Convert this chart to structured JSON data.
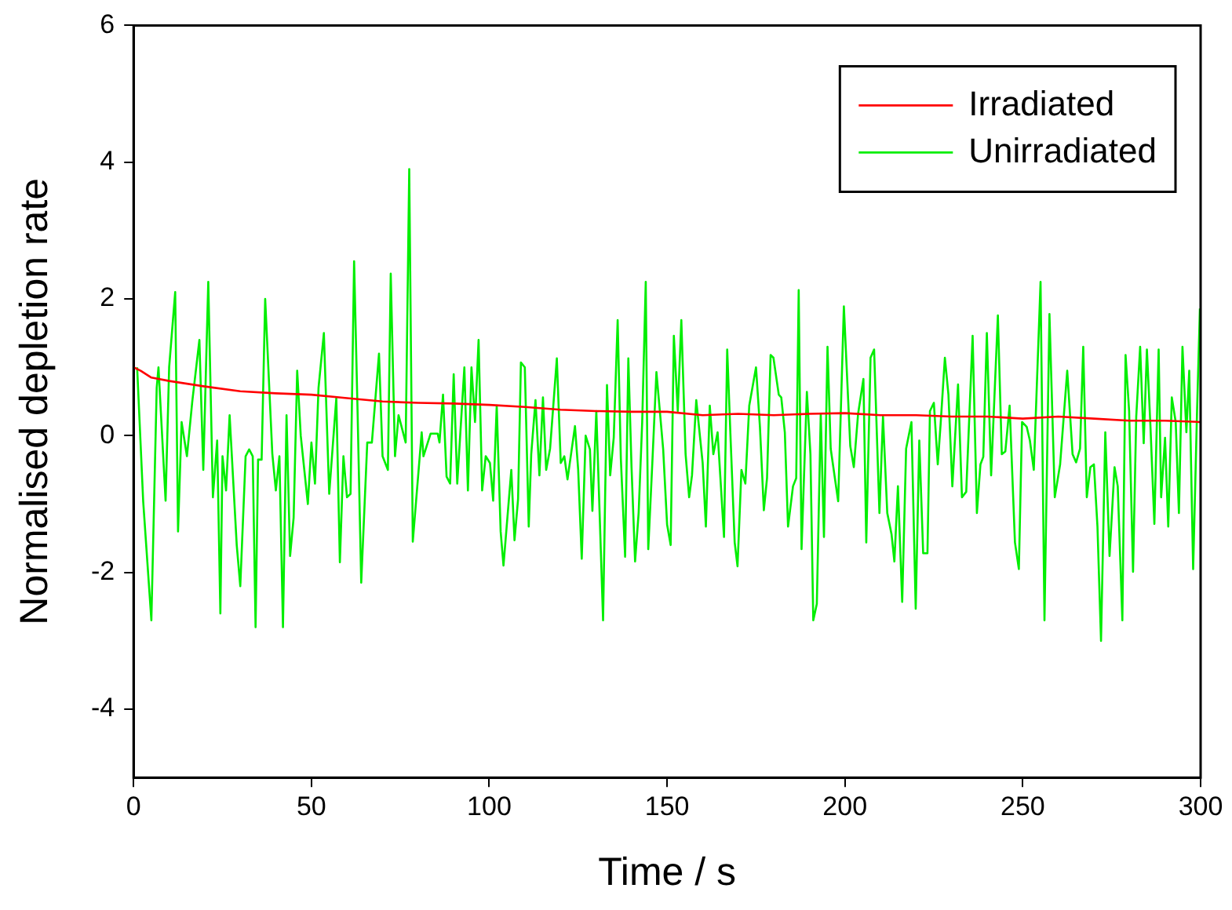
{
  "chart_data": {
    "type": "line",
    "xlabel": "Time / s",
    "ylabel": "Normalised depletion rate",
    "xlim": [
      0,
      300
    ],
    "xticks": [
      0,
      50,
      100,
      150,
      200,
      250,
      300
    ],
    "ylim": [
      -5,
      6
    ],
    "yticks": [
      -4,
      -2,
      0,
      2,
      4,
      6
    ],
    "grid": false,
    "legend": "top right",
    "marker": "none",
    "line_style": "solid",
    "series": [
      {
        "name": "Irradiated",
        "color": "#ff0000",
        "x": [
          0,
          2,
          5,
          10,
          20,
          30,
          40,
          50,
          60,
          70,
          80,
          90,
          100,
          110,
          120,
          130,
          140,
          150,
          160,
          170,
          180,
          190,
          200,
          210,
          220,
          230,
          240,
          250,
          260,
          270,
          280,
          290,
          300
        ],
        "values": [
          1.0,
          0.95,
          0.85,
          0.8,
          0.72,
          0.65,
          0.62,
          0.6,
          0.55,
          0.5,
          0.48,
          0.47,
          0.45,
          0.42,
          0.38,
          0.36,
          0.35,
          0.35,
          0.3,
          0.32,
          0.3,
          0.32,
          0.33,
          0.3,
          0.3,
          0.28,
          0.28,
          0.25,
          0.28,
          0.25,
          0.22,
          0.22,
          0.2
        ]
      },
      {
        "name": "Unirradiated",
        "color": "#00ee00",
        "x": [
          1,
          2.7,
          5,
          6.5,
          7,
          9,
          10,
          11.7,
          12.5,
          13.5,
          15,
          16.5,
          18.5,
          19.6,
          21,
          22.3,
          23.5,
          24.4,
          25,
          26,
          27,
          29,
          30,
          31.5,
          32.5,
          33.5,
          34.3,
          35,
          36,
          37,
          39,
          40,
          41,
          42,
          43,
          44,
          45,
          46,
          47,
          49,
          50,
          51,
          52,
          53.5,
          55,
          57,
          58,
          59,
          60,
          61,
          62,
          63,
          64,
          65.7,
          67,
          69,
          70,
          71.5,
          72.3,
          73.5,
          74.5,
          76.5,
          77.5,
          78.5,
          81,
          81.5,
          83.5,
          85.5,
          86,
          87,
          88,
          89,
          90,
          91,
          93,
          94,
          95,
          96,
          97,
          98,
          99,
          100.2,
          101.1,
          102.1,
          103.2,
          104,
          106.2,
          107.1,
          108.1,
          108.9,
          110,
          111.1,
          111.8,
          113,
          114.1,
          115.1,
          116,
          117.1,
          119,
          120.1,
          121.1,
          122,
          124.1,
          125,
          126,
          127.1,
          128.3,
          129,
          130.1,
          132,
          133.1,
          134,
          135,
          136.1,
          137,
          138.2,
          139.1,
          140,
          141,
          142,
          143,
          144,
          144.7,
          145.9,
          147,
          148.9,
          150,
          151,
          151.9,
          153,
          154,
          155.2,
          156.2,
          157,
          158.2,
          160,
          160.9,
          162,
          163,
          164.2,
          166,
          166.9,
          167.9,
          169,
          169.8,
          170.9,
          172,
          173.1,
          175,
          176.1,
          177.2,
          178.1,
          179.1,
          179.9,
          181.4,
          182.1,
          183.1,
          184,
          185.4,
          186.3,
          187,
          187.8,
          189.3,
          190.3,
          191.1,
          192.1,
          193.2,
          194.1,
          195.1,
          196,
          198.1,
          199.7,
          201.5,
          202.5,
          203.7,
          205.2,
          206,
          207.2,
          208.2,
          209.7,
          210.7,
          211.9,
          213.1,
          213.9,
          214.9,
          216.1,
          217.2,
          218.7,
          219.9,
          220.9,
          222,
          223.2,
          223.9,
          225,
          226.1,
          226.9,
          228.1,
          229.1,
          230.2,
          231.8,
          232.9,
          234.1,
          235.9,
          237.1,
          238.1,
          238.9,
          239.9,
          241.1,
          243,
          244.1,
          245.1,
          246.3,
          247.8,
          248.9,
          249.8,
          251.1,
          252,
          253.1,
          255,
          256.1,
          257.5,
          259,
          260.5,
          262.5,
          264,
          265,
          266.1,
          267,
          268,
          269,
          270,
          271,
          272,
          273.2,
          274.4,
          275.8,
          276.7,
          278,
          278.9,
          279.9,
          281,
          281.9,
          283,
          284,
          284.9,
          285.9,
          287,
          288.2,
          288.9,
          290,
          290.9,
          291.9,
          293,
          293.9,
          294.9,
          296,
          296.8,
          297.9,
          299,
          299.8
        ],
        "values": [
          1.0,
          -0.96,
          -2.7,
          0.7,
          1.0,
          -0.95,
          1.0,
          2.1,
          -1.4,
          0.2,
          -0.3,
          0.5,
          1.4,
          -0.5,
          2.25,
          -0.9,
          -0.07,
          -2.6,
          -0.3,
          -0.8,
          0.3,
          -1.6,
          -2.2,
          -0.3,
          -0.2,
          -0.3,
          -2.8,
          -0.35,
          -0.35,
          2.0,
          -0.26,
          -0.8,
          -0.3,
          -2.8,
          0.3,
          -1.76,
          -1.2,
          0.95,
          0.0,
          -1.0,
          -0.1,
          -0.7,
          0.7,
          1.5,
          -0.85,
          0.55,
          -1.85,
          -0.3,
          -0.9,
          -0.85,
          2.55,
          0.3,
          -2.15,
          -0.1,
          -0.1,
          1.2,
          -0.3,
          -0.5,
          2.37,
          -0.3,
          0.3,
          -0.1,
          3.9,
          -1.55,
          0.05,
          -0.3,
          0.03,
          0.03,
          -0.1,
          0.6,
          -0.6,
          -0.7,
          0.9,
          -0.7,
          1.0,
          -0.8,
          1.0,
          0.2,
          1.4,
          -0.8,
          -0.3,
          -0.4,
          -0.95,
          0.44,
          -1.4,
          -1.9,
          -0.5,
          -1.53,
          -0.93,
          1.07,
          1.0,
          -1.33,
          -0.27,
          0.52,
          -0.58,
          0.56,
          -0.5,
          -0.19,
          1.13,
          -0.4,
          -0.3,
          -0.64,
          0.14,
          -0.5,
          -1.8,
          0.0,
          -0.2,
          -1.1,
          0.36,
          -2.7,
          0.74,
          -0.58,
          -0.03,
          1.69,
          -0.34,
          -1.77,
          1.13,
          -0.46,
          -1.84,
          -1.13,
          0.2,
          2.25,
          -1.66,
          -0.34,
          0.93,
          -0.2,
          -1.3,
          -1.6,
          1.46,
          0.36,
          1.69,
          -0.27,
          -0.9,
          -0.58,
          0.52,
          -0.4,
          -1.33,
          0.44,
          -0.27,
          0.05,
          -1.48,
          1.26,
          -0.11,
          -1.56,
          -1.91,
          -0.5,
          -0.7,
          0.44,
          1.0,
          0.13,
          -1.09,
          -0.62,
          1.18,
          1.14,
          0.6,
          0.56,
          0.05,
          -1.33,
          -0.74,
          -0.62,
          2.13,
          -1.66,
          0.64,
          -0.27,
          -2.7,
          -2.46,
          0.32,
          -1.48,
          1.3,
          -0.19,
          -0.96,
          1.89,
          -0.15,
          -0.46,
          0.32,
          0.83,
          -1.56,
          1.14,
          1.26,
          -1.13,
          0.28,
          -1.13,
          -1.44,
          -1.84,
          -0.74,
          -2.43,
          -0.19,
          0.2,
          -2.53,
          -0.07,
          -1.72,
          -1.72,
          0.36,
          0.48,
          -0.42,
          0.17,
          1.14,
          0.6,
          -0.74,
          0.75,
          -0.9,
          -0.82,
          1.46,
          -1.13,
          -0.42,
          -0.31,
          1.5,
          -0.58,
          1.76,
          -0.27,
          -0.23,
          0.44,
          -1.56,
          -1.95,
          0.2,
          0.13,
          -0.07,
          -0.5,
          2.25,
          -2.7,
          1.78,
          -0.9,
          -0.42,
          0.95,
          -0.27,
          -0.39,
          -0.19,
          1.3,
          -0.9,
          -0.46,
          -0.42,
          -1.33,
          -3.0,
          0.05,
          -1.76,
          -0.46,
          -0.74,
          -2.7,
          1.18,
          0.36,
          -1.99,
          0.28,
          1.3,
          -0.11,
          1.26,
          0.13,
          -1.29,
          1.26,
          -0.9,
          -0.03,
          -1.33,
          0.56,
          0.2,
          -1.13,
          1.3,
          0.05,
          0.95,
          -1.95,
          0.36,
          1.86
        ]
      }
    ]
  }
}
